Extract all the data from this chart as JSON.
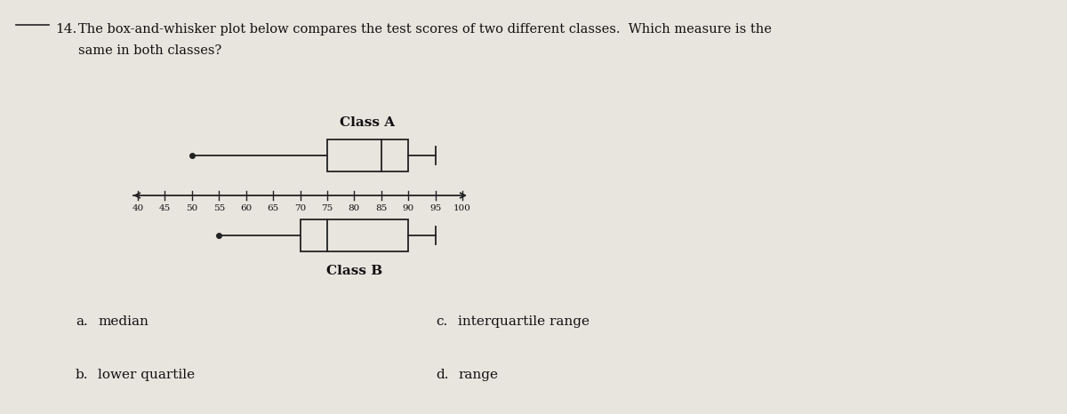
{
  "title_line1": "14.  The box-and-whisker plot below compares the test scores of two different classes.  Which measure is the",
  "title_line2": "same in both classes?",
  "class_a_label": "Class A",
  "class_b_label": "Class B",
  "axis_min": 40,
  "axis_max": 100,
  "axis_ticks": [
    40,
    45,
    50,
    55,
    60,
    65,
    70,
    75,
    80,
    85,
    90,
    95,
    100
  ],
  "class_a": {
    "min": 50,
    "q1": 75,
    "median": 85,
    "q3": 90,
    "max": 95
  },
  "class_b": {
    "min": 55,
    "q1": 70,
    "median": 75,
    "q3": 90,
    "max": 95
  },
  "answers": [
    {
      "letter": "a.",
      "text": "median"
    },
    {
      "letter": "b.",
      "text": "lower quartile"
    },
    {
      "letter": "c.",
      "text": "interquartile range"
    },
    {
      "letter": "d.",
      "text": "range"
    }
  ],
  "bg_color": "#e8e4de",
  "box_facecolor": "#e8e4de",
  "line_color": "#222222",
  "text_color": "#111111",
  "number_line_color": "#444444"
}
